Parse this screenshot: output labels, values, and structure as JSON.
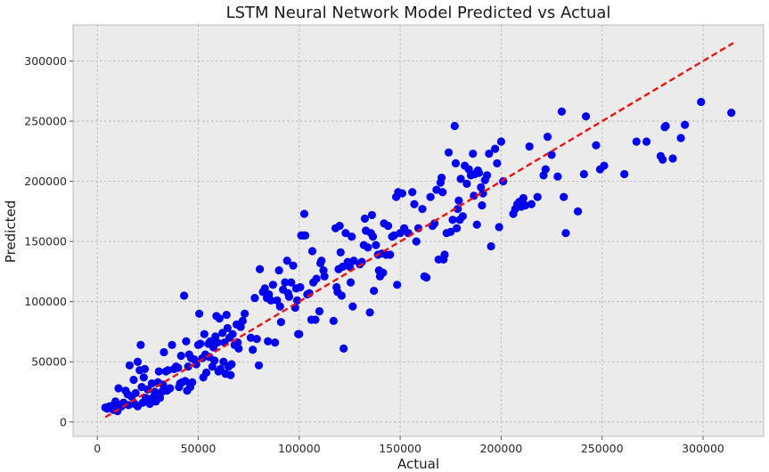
{
  "chart_data": {
    "type": "scatter",
    "title": "LSTM Neural Network Model Predicted vs Actual",
    "xlabel": "Actual",
    "ylabel": "Predicted",
    "xlim": [
      -12000,
      330000
    ],
    "ylim": [
      -12000,
      330000
    ],
    "xticks": [
      0,
      50000,
      100000,
      150000,
      200000,
      250000,
      300000
    ],
    "yticks": [
      0,
      50000,
      100000,
      150000,
      200000,
      250000,
      300000
    ],
    "xtick_labels": [
      "0",
      "50000",
      "100000",
      "150000",
      "200000",
      "250000",
      "300000"
    ],
    "ytick_labels": [
      "0",
      "50000",
      "100000",
      "150000",
      "200000",
      "250000",
      "300000"
    ],
    "grid": true,
    "colors": {
      "points": "#0000ee",
      "reference_line": "#ee1111",
      "background": "#ebebeb"
    },
    "reference_line": {
      "style": "dashed",
      "x": [
        4000,
        315000
      ],
      "y": [
        4000,
        315000
      ]
    },
    "series": [
      {
        "marker": "circle",
        "points": [
          [
            4000,
            12000
          ],
          [
            5000,
            11000
          ],
          [
            6000,
            13000
          ],
          [
            7000,
            12000
          ],
          [
            8000,
            10000
          ],
          [
            8500,
            15000
          ],
          [
            9000,
            17000
          ],
          [
            10000,
            9000
          ],
          [
            10500,
            28000
          ],
          [
            11000,
            14000
          ],
          [
            12000,
            13000
          ],
          [
            13000,
            16000
          ],
          [
            14000,
            26000
          ],
          [
            15000,
            23000
          ],
          [
            15500,
            14000
          ],
          [
            16000,
            47000
          ],
          [
            17000,
            21000
          ],
          [
            18000,
            35000
          ],
          [
            18500,
            15000
          ],
          [
            19000,
            24000
          ],
          [
            20000,
            13000
          ],
          [
            20000,
            50000
          ],
          [
            21000,
            43000
          ],
          [
            21500,
            64000
          ],
          [
            22000,
            29000
          ],
          [
            22500,
            16000
          ],
          [
            23000,
            37000
          ],
          [
            23500,
            44000
          ],
          [
            24000,
            20000
          ],
          [
            25000,
            27000
          ],
          [
            26000,
            15000
          ],
          [
            26500,
            19000
          ],
          [
            27000,
            32000
          ],
          [
            28000,
            21000
          ],
          [
            28500,
            25000
          ],
          [
            29000,
            17000
          ],
          [
            30000,
            33000
          ],
          [
            30500,
            42000
          ],
          [
            31000,
            20000
          ],
          [
            32000,
            25000
          ],
          [
            32500,
            31000
          ],
          [
            33000,
            58000
          ],
          [
            34000,
            42000
          ],
          [
            34500,
            26000
          ],
          [
            35000,
            43000
          ],
          [
            36000,
            28000
          ],
          [
            37000,
            64000
          ],
          [
            38000,
            44000
          ],
          [
            39000,
            46000
          ],
          [
            40000,
            45000
          ],
          [
            40500,
            29000
          ],
          [
            41000,
            32000
          ],
          [
            41500,
            55000
          ],
          [
            42000,
            33000
          ],
          [
            43000,
            105000
          ],
          [
            43500,
            34000
          ],
          [
            44000,
            67000
          ],
          [
            44500,
            26000
          ],
          [
            45000,
            46000
          ],
          [
            45500,
            56000
          ],
          [
            46000,
            29000
          ],
          [
            46500,
            53000
          ],
          [
            47000,
            33000
          ],
          [
            48000,
            52000
          ],
          [
            49000,
            48000
          ],
          [
            50000,
            64000
          ],
          [
            50500,
            90000
          ],
          [
            51000,
            65000
          ],
          [
            52000,
            53000
          ],
          [
            52500,
            37000
          ],
          [
            53000,
            73000
          ],
          [
            53500,
            56000
          ],
          [
            54000,
            41000
          ],
          [
            55000,
            65000
          ],
          [
            55500,
            54000
          ],
          [
            56000,
            67000
          ],
          [
            57000,
            46000
          ],
          [
            57500,
            62000
          ],
          [
            58000,
            51000
          ],
          [
            58500,
            71000
          ],
          [
            59000,
            88000
          ],
          [
            59500,
            66000
          ],
          [
            60000,
            42000
          ],
          [
            60500,
            86000
          ],
          [
            61000,
            44000
          ],
          [
            62000,
            74000
          ],
          [
            62500,
            50000
          ],
          [
            63000,
            66000
          ],
          [
            63500,
            40000
          ],
          [
            64000,
            89000
          ],
          [
            64500,
            78000
          ],
          [
            65000,
            46000
          ],
          [
            65500,
            70000
          ],
          [
            66000,
            39000
          ],
          [
            66500,
            48000
          ],
          [
            67000,
            73000
          ],
          [
            68000,
            64000
          ],
          [
            69000,
            81000
          ],
          [
            69500,
            66000
          ],
          [
            70000,
            61000
          ],
          [
            71000,
            79000
          ],
          [
            72000,
            84000
          ],
          [
            73000,
            90000
          ],
          [
            76000,
            70000
          ],
          [
            77000,
            60000
          ],
          [
            78000,
            103000
          ],
          [
            79000,
            69000
          ],
          [
            80000,
            47000
          ],
          [
            80500,
            127000
          ],
          [
            82000,
            108000
          ],
          [
            83000,
            111000
          ],
          [
            84000,
            103000
          ],
          [
            84500,
            67000
          ],
          [
            85000,
            106000
          ],
          [
            86000,
            101000
          ],
          [
            87000,
            114000
          ],
          [
            88000,
            66000
          ],
          [
            89000,
            101000
          ],
          [
            90000,
            126000
          ],
          [
            90500,
            96000
          ],
          [
            91000,
            83000
          ],
          [
            92000,
            110000
          ],
          [
            93000,
            116000
          ],
          [
            94000,
            134000
          ],
          [
            94500,
            107000
          ],
          [
            95000,
            104000
          ],
          [
            96000,
            116000
          ],
          [
            97000,
            130000
          ],
          [
            98000,
            95000
          ],
          [
            98500,
            111000
          ],
          [
            99000,
            101000
          ],
          [
            99500,
            73000
          ],
          [
            100000,
            73000
          ],
          [
            100500,
            112000
          ],
          [
            101000,
            155000
          ],
          [
            102000,
            155000
          ],
          [
            102500,
            173000
          ],
          [
            103000,
            155000
          ],
          [
            104000,
            106000
          ],
          [
            105000,
            107000
          ],
          [
            106000,
            85000
          ],
          [
            106500,
            142000
          ],
          [
            107000,
            116000
          ],
          [
            108000,
            85000
          ],
          [
            108500,
            119000
          ],
          [
            110000,
            92000
          ],
          [
            110500,
            132000
          ],
          [
            111000,
            134000
          ],
          [
            112000,
            126000
          ],
          [
            112500,
            121000
          ],
          [
            117000,
            84000
          ],
          [
            118000,
            161000
          ],
          [
            118500,
            112000
          ],
          [
            119000,
            108000
          ],
          [
            119500,
            127000
          ],
          [
            120000,
            163000
          ],
          [
            120500,
            141000
          ],
          [
            121000,
            105000
          ],
          [
            121500,
            129000
          ],
          [
            122000,
            61000
          ],
          [
            123000,
            157000
          ],
          [
            124000,
            133000
          ],
          [
            125000,
            129000
          ],
          [
            125500,
            116000
          ],
          [
            126000,
            154000
          ],
          [
            126500,
            96000
          ],
          [
            127000,
            134000
          ],
          [
            130000,
            131000
          ],
          [
            131000,
            133000
          ],
          [
            132000,
            147000
          ],
          [
            132500,
            169000
          ],
          [
            133000,
            159000
          ],
          [
            134000,
            145000
          ],
          [
            135000,
            91000
          ],
          [
            135500,
            157000
          ],
          [
            136000,
            172000
          ],
          [
            136500,
            154000
          ],
          [
            137000,
            109000
          ],
          [
            138000,
            147000
          ],
          [
            139000,
            139000
          ],
          [
            139500,
            126000
          ],
          [
            140000,
            121000
          ],
          [
            141000,
            140000
          ],
          [
            141500,
            124000
          ],
          [
            142000,
            165000
          ],
          [
            143000,
            139000
          ],
          [
            144000,
            163000
          ],
          [
            145000,
            139000
          ],
          [
            146000,
            154000
          ],
          [
            147000,
            155000
          ],
          [
            148000,
            187000
          ],
          [
            148500,
            114000
          ],
          [
            149000,
            191000
          ],
          [
            150000,
            157000
          ],
          [
            151000,
            190000
          ],
          [
            152000,
            161000
          ],
          [
            154000,
            157000
          ],
          [
            156000,
            191000
          ],
          [
            157000,
            181000
          ],
          [
            158000,
            150000
          ],
          [
            159000,
            161000
          ],
          [
            161000,
            177000
          ],
          [
            162000,
            121000
          ],
          [
            163000,
            120000
          ],
          [
            165000,
            187000
          ],
          [
            166000,
            163000
          ],
          [
            167000,
            165000
          ],
          [
            168000,
            193000
          ],
          [
            169000,
            135000
          ],
          [
            170000,
            199000
          ],
          [
            170500,
            203000
          ],
          [
            171000,
            191000
          ],
          [
            171500,
            135000
          ],
          [
            172000,
            139000
          ],
          [
            173000,
            157000
          ],
          [
            174000,
            224000
          ],
          [
            175000,
            158000
          ],
          [
            176000,
            168000
          ],
          [
            177000,
            246000
          ],
          [
            177500,
            215000
          ],
          [
            178000,
            161000
          ],
          [
            178500,
            177000
          ],
          [
            179000,
            184000
          ],
          [
            179500,
            168000
          ],
          [
            180000,
            202000
          ],
          [
            181000,
            171000
          ],
          [
            182000,
            213000
          ],
          [
            183000,
            198000
          ],
          [
            184000,
            210000
          ],
          [
            185000,
            205000
          ],
          [
            186000,
            223000
          ],
          [
            186500,
            188000
          ],
          [
            187000,
            206000
          ],
          [
            188000,
            164000
          ],
          [
            188500,
            209000
          ],
          [
            189000,
            207000
          ],
          [
            190000,
            195000
          ],
          [
            190500,
            180000
          ],
          [
            191000,
            190000
          ],
          [
            192000,
            201000
          ],
          [
            193000,
            205000
          ],
          [
            194000,
            223000
          ],
          [
            195000,
            146000
          ],
          [
            197000,
            227000
          ],
          [
            198000,
            215000
          ],
          [
            199000,
            162000
          ],
          [
            200000,
            233000
          ],
          [
            201000,
            200000
          ],
          [
            206000,
            173000
          ],
          [
            207000,
            177000
          ],
          [
            208000,
            181000
          ],
          [
            209000,
            183000
          ],
          [
            210000,
            179000
          ],
          [
            210500,
            184000
          ],
          [
            211000,
            186000
          ],
          [
            212000,
            180000
          ],
          [
            214000,
            229000
          ],
          [
            215000,
            181000
          ],
          [
            218000,
            187000
          ],
          [
            221000,
            205000
          ],
          [
            222000,
            210000
          ],
          [
            223000,
            237000
          ],
          [
            225000,
            222000
          ],
          [
            228000,
            204000
          ],
          [
            230000,
            258000
          ],
          [
            231000,
            187000
          ],
          [
            232000,
            157000
          ],
          [
            238000,
            175000
          ],
          [
            241000,
            206000
          ],
          [
            242000,
            254000
          ],
          [
            247000,
            230000
          ],
          [
            249000,
            210000
          ],
          [
            251000,
            213000
          ],
          [
            261000,
            206000
          ],
          [
            267000,
            233000
          ],
          [
            272000,
            233000
          ],
          [
            279000,
            221000
          ],
          [
            280000,
            218000
          ],
          [
            281000,
            245000
          ],
          [
            281500,
            246000
          ],
          [
            285000,
            219000
          ],
          [
            289000,
            236000
          ],
          [
            291000,
            247000
          ],
          [
            299000,
            266000
          ],
          [
            314000,
            257000
          ]
        ]
      }
    ]
  }
}
